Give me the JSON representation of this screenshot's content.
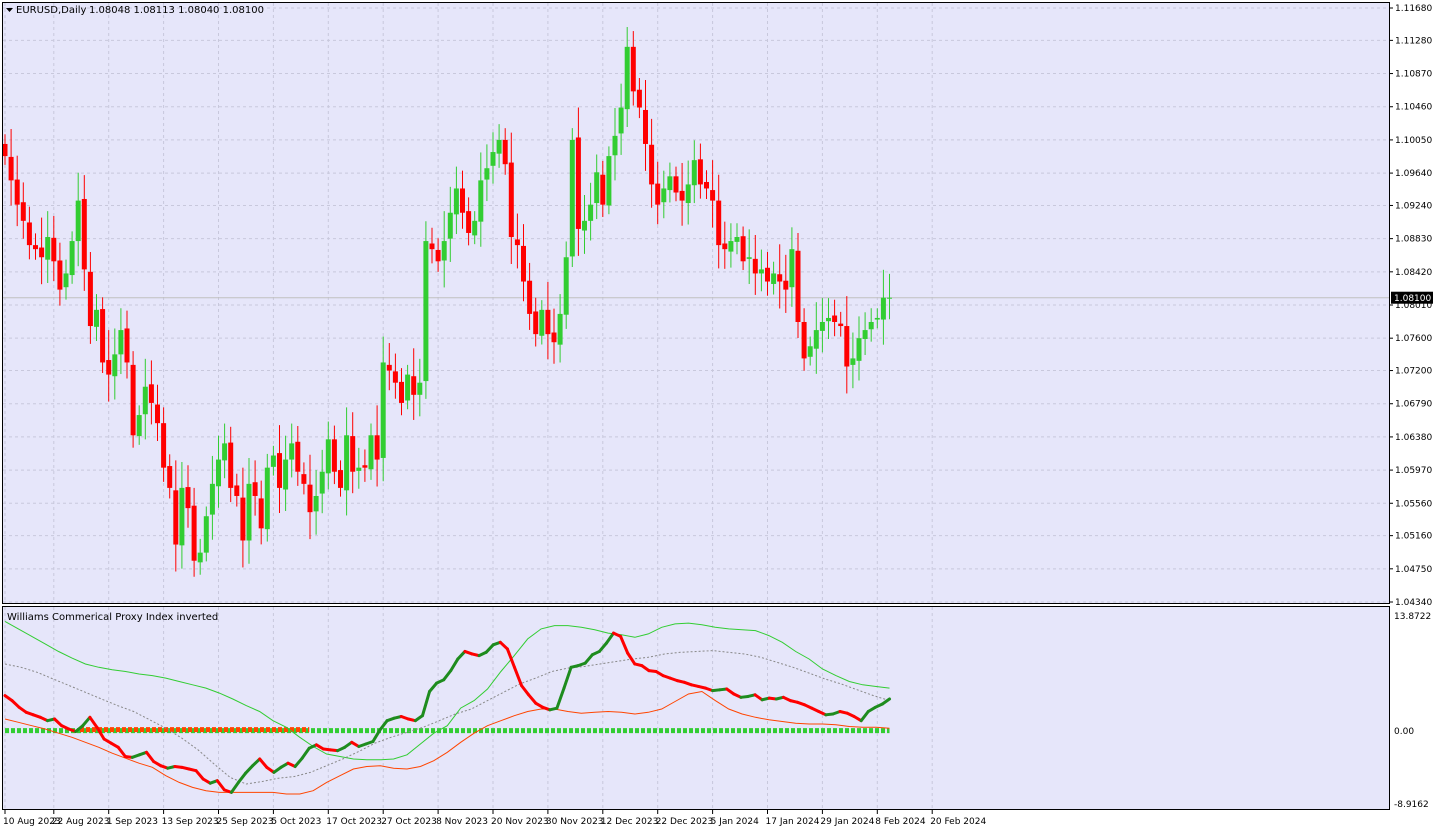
{
  "header": {
    "symbol": "EURUSD,Daily",
    "ohlc": "1.08048 1.08113 1.08040 1.08100"
  },
  "indicator": {
    "title": "Williams Commerical Proxy Index inverted",
    "axis_labels": [
      "13.8722",
      "0.00",
      "-8.9162"
    ]
  },
  "colors": {
    "background": "#e6e6fa",
    "bull": "#32cd32",
    "bear": "#ff0000",
    "grid": "#c8c8dc",
    "band_upper": "#32cd32",
    "band_lower": "#ff4500",
    "dotted_level": "#ff4500"
  },
  "chart_data": [
    {
      "type": "candlestick",
      "symbol": "EURUSD",
      "timeframe": "Daily",
      "ylim": [
        1.0434,
        1.1168
      ],
      "current_price": "1.08100",
      "y_ticks": [
        "1.11680",
        "1.11280",
        "1.10870",
        "1.10460",
        "1.10050",
        "1.09640",
        "1.09240",
        "1.08830",
        "1.08420",
        "1.08010",
        "1.07600",
        "1.07200",
        "1.06790",
        "1.06380",
        "1.05970",
        "1.05560",
        "1.05160",
        "1.04750",
        "1.04340"
      ],
      "x_ticks": [
        "10 Aug 2023",
        "22 Aug 2023",
        "1 Sep 2023",
        "13 Sep 2023",
        "25 Sep 2023",
        "5 Oct 2023",
        "17 Oct 2023",
        "27 Oct 2023",
        "8 Nov 2023",
        "20 Nov 2023",
        "30 Nov 2023",
        "12 Dec 2023",
        "22 Dec 2023",
        "5 Jan 2024",
        "17 Jan 2024",
        "29 Jan 2024",
        "8 Feb 2024",
        "20 Feb 2024"
      ],
      "x_tick_index": [
        0,
        8,
        17,
        26,
        35,
        44,
        53,
        62,
        71,
        80,
        89,
        98,
        107,
        116,
        125,
        134,
        143,
        152
      ],
      "closes": [
        1.0985,
        1.0955,
        1.0925,
        1.0905,
        1.0875,
        1.087,
        1.086,
        1.0885,
        1.0855,
        1.082,
        1.084,
        1.088,
        1.093,
        1.0845,
        1.0775,
        1.0795,
        1.073,
        1.0715,
        1.074,
        1.077,
        1.073,
        1.064,
        1.0665,
        1.07,
        1.068,
        1.0655,
        1.06,
        1.0575,
        1.0505,
        1.0575,
        1.055,
        1.0485,
        1.0495,
        1.054,
        1.058,
        1.061,
        1.063,
        1.0575,
        1.0565,
        1.051,
        1.058,
        1.0565,
        1.0525,
        1.06,
        1.0615,
        1.0575,
        1.061,
        1.063,
        1.0595,
        1.058,
        1.0545,
        1.0565,
        1.0595,
        1.0635,
        1.0595,
        1.0575,
        1.064,
        1.0595,
        1.06,
        1.06,
        1.064,
        1.061,
        1.073,
        1.072,
        1.0705,
        1.068,
        1.0715,
        1.069,
        1.0705,
        1.088,
        1.087,
        1.0855,
        1.088,
        1.0915,
        1.0945,
        1.0915,
        1.089,
        1.0905,
        1.0955,
        1.097,
        1.099,
        1.1005,
        1.0975,
        1.0885,
        1.0875,
        1.083,
        1.079,
        1.0765,
        1.0795,
        1.0765,
        1.0755,
        1.079,
        1.086,
        1.1005,
        1.0895,
        1.0905,
        1.0925,
        1.0965,
        1.0925,
        1.0985,
        1.101,
        1.1045,
        1.112,
        1.1065,
        1.1045,
        1.1,
        1.095,
        1.0925,
        1.0945,
        1.096,
        1.094,
        1.093,
        1.095,
        1.098,
        1.095,
        1.0945,
        1.093,
        1.0875,
        1.087,
        1.088,
        1.0885,
        1.0855,
        1.086,
        1.084,
        1.0845,
        1.083,
        1.084,
        1.083,
        1.082,
        1.087,
        1.078,
        1.0735,
        1.075,
        1.077,
        1.078,
        1.0785,
        1.078,
        1.0775,
        1.0725,
        1.0735,
        1.076,
        1.077,
        1.078,
        1.0785,
        1.081,
        1.081
      ]
    },
    {
      "type": "line",
      "title": "Williams Commerical Proxy Index inverted",
      "ylim": [
        -8.9162,
        13.8722
      ],
      "series": [
        {
          "key": "cpi",
          "values": [
            4.2,
            3.6,
            2.8,
            2.2,
            1.9,
            1.6,
            1.2,
            1.4,
            0.6,
            0.2,
            -0.1,
            0.6,
            1.6,
            0.4,
            -1.0,
            -1.5,
            -2.0,
            -3.1,
            -3.2,
            -2.9,
            -2.6,
            -3.7,
            -4.2,
            -4.5,
            -4.3,
            -4.4,
            -4.6,
            -4.8,
            -5.8,
            -6.3,
            -6.0,
            -7.1,
            -7.4,
            -6.2,
            -5.1,
            -4.2,
            -3.4,
            -4.4,
            -5.0,
            -4.4,
            -3.9,
            -4.3,
            -3.3,
            -2.1,
            -1.7,
            -2.2,
            -2.3,
            -2.4,
            -2.0,
            -1.4,
            -1.9,
            -1.6,
            -1.3,
            0.1,
            1.2,
            1.5,
            1.7,
            1.4,
            1.2,
            1.8,
            4.7,
            5.7,
            6.1,
            7.2,
            8.6,
            9.5,
            9.2,
            9.0,
            9.4,
            10.3,
            10.6,
            9.8,
            7.6,
            5.4,
            4.3,
            3.3,
            2.8,
            2.5,
            2.7,
            5.1,
            7.6,
            7.8,
            8.1,
            9.1,
            9.5,
            10.5,
            11.7,
            11.3,
            9.3,
            8.0,
            7.8,
            7.2,
            7.1,
            6.6,
            6.3,
            6.0,
            5.8,
            5.5,
            5.3,
            5.1,
            4.8,
            4.9,
            5.0,
            4.4,
            4.0,
            4.1,
            4.3,
            3.7,
            3.9,
            3.8,
            4.0,
            3.6,
            3.4,
            3.1,
            2.7,
            2.3,
            1.9,
            2.0,
            2.3,
            2.1,
            1.7,
            1.2,
            2.3,
            2.8,
            3.2,
            3.8
          ]
        },
        {
          "key": "upper_band",
          "values": [
            13.1,
            12.2,
            11.3,
            10.4,
            9.5,
            8.7,
            8.0,
            7.6,
            7.3,
            7.1,
            6.8,
            6.6,
            6.3,
            5.9,
            5.5,
            5.1,
            4.5,
            3.8,
            3.0,
            2.3,
            1.2,
            0.4,
            -0.8,
            -1.9,
            -2.8,
            -3.1,
            -3.4,
            -3.5,
            -3.5,
            -3.4,
            -2.9,
            -1.6,
            -0.3,
            0.6,
            2.7,
            3.6,
            5.0,
            7.1,
            9.0,
            11.0,
            12.2,
            12.6,
            12.6,
            12.4,
            12.1,
            11.7,
            11.5,
            11.2,
            11.6,
            12.4,
            12.8,
            12.9,
            12.7,
            12.4,
            12.2,
            12.1,
            12.0,
            11.4,
            10.6,
            9.5,
            8.6,
            7.4,
            6.6,
            5.9,
            5.5,
            5.3,
            5.1
          ]
        },
        {
          "key": "middle",
          "values": [
            8.0,
            7.6,
            7.0,
            6.2,
            5.4,
            4.6,
            3.8,
            3.0,
            2.3,
            1.3,
            0.3,
            -0.9,
            -2.3,
            -4.0,
            -5.6,
            -6.4,
            -6.1,
            -5.7,
            -5.5,
            -5.0,
            -4.2,
            -3.4,
            -2.5,
            -1.5,
            -0.8,
            -0.2,
            0.4,
            1.2,
            2.0,
            2.6,
            3.6,
            4.6,
            5.6,
            6.3,
            7.1,
            7.5,
            7.7,
            8.0,
            8.3,
            8.6,
            8.8,
            9.2,
            9.4,
            9.5,
            9.6,
            9.4,
            9.2,
            8.8,
            8.2,
            7.6,
            6.9,
            6.2,
            5.6,
            4.9,
            4.2,
            3.6
          ]
        },
        {
          "key": "lower_band",
          "values": [
            1.4,
            1.0,
            0.6,
            0.2,
            -0.3,
            -0.8,
            -1.4,
            -2.0,
            -2.7,
            -3.3,
            -3.9,
            -4.4,
            -5.4,
            -6.2,
            -6.8,
            -7.2,
            -7.4,
            -7.4,
            -7.4,
            -7.4,
            -7.4,
            -7.6,
            -7.6,
            -7.2,
            -6.2,
            -5.4,
            -4.6,
            -4.3,
            -4.2,
            -4.5,
            -4.6,
            -4.3,
            -3.6,
            -2.6,
            -1.4,
            -0.3,
            0.6,
            1.2,
            1.8,
            2.3,
            2.6,
            2.6,
            2.3,
            2.1,
            2.2,
            2.3,
            2.2,
            2.0,
            2.2,
            2.6,
            3.5,
            4.4,
            4.7,
            3.6,
            2.6,
            2.0,
            1.6,
            1.3,
            1.1,
            0.9,
            0.8,
            0.8,
            0.7,
            0.5,
            0.4,
            0.4,
            0.3
          ]
        }
      ]
    }
  ]
}
